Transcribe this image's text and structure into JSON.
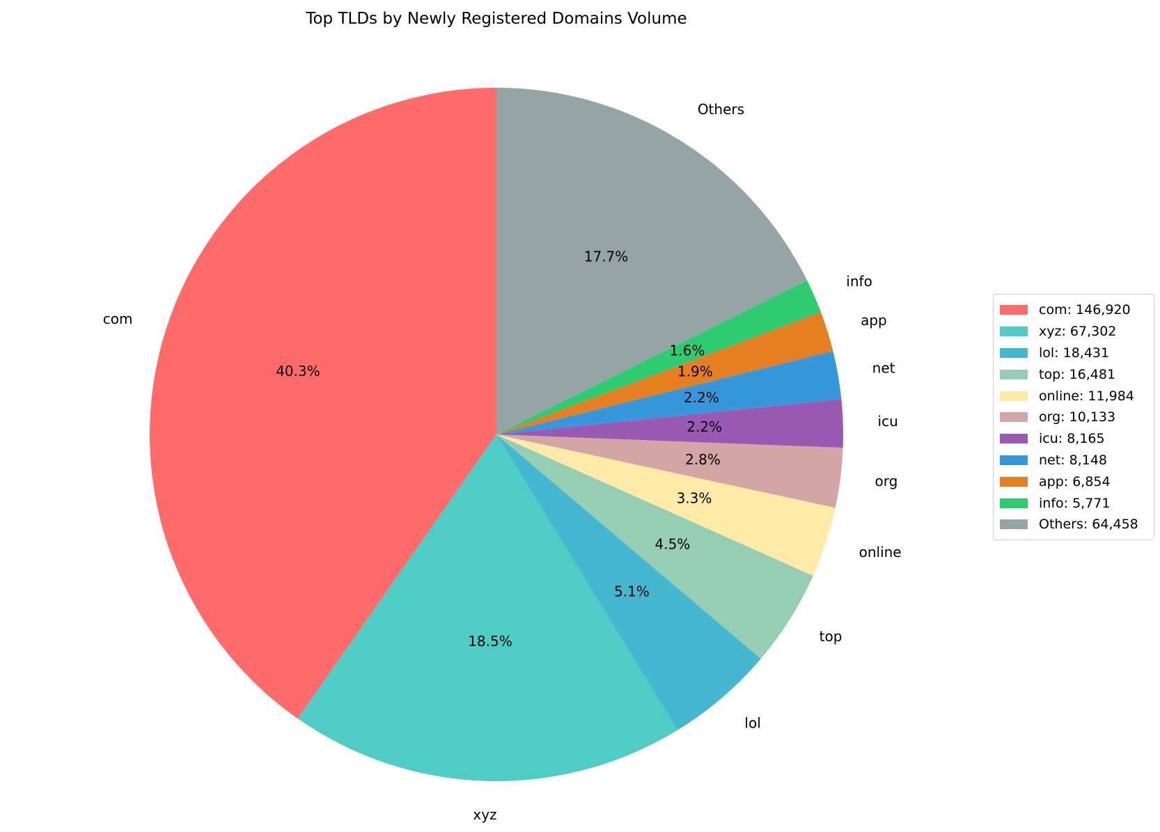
{
  "chart_data": {
    "type": "pie",
    "title": "Top TLDs by Newly Registered Domains Volume",
    "start_angle_deg": 90,
    "direction": "counterclockwise",
    "slices": [
      {
        "label": "com",
        "value": 146920,
        "pct": "40.3%",
        "legend": "com: 146,920",
        "color": "#ff6b6b"
      },
      {
        "label": "xyz",
        "value": 67302,
        "pct": "18.5%",
        "legend": "xyz: 67,302",
        "color": "#4ecdc4"
      },
      {
        "label": "lol",
        "value": 18431,
        "pct": "5.1%",
        "legend": "lol: 18,431",
        "color": "#45b7d1"
      },
      {
        "label": "top",
        "value": 16481,
        "pct": "4.5%",
        "legend": "top: 16,481",
        "color": "#96ceb4"
      },
      {
        "label": "online",
        "value": 11984,
        "pct": "3.3%",
        "legend": "online: 11,984",
        "color": "#ffeaa7"
      },
      {
        "label": "org",
        "value": 10133,
        "pct": "2.8%",
        "legend": "org: 10,133",
        "color": "#d4a5a5"
      },
      {
        "label": "icu",
        "value": 8165,
        "pct": "2.2%",
        "legend": "icu: 8,165",
        "color": "#9b59b6"
      },
      {
        "label": "net",
        "value": 8148,
        "pct": "2.2%",
        "legend": "net: 8,148",
        "color": "#3498db"
      },
      {
        "label": "app",
        "value": 6854,
        "pct": "1.9%",
        "legend": "app: 6,854",
        "color": "#e67e22"
      },
      {
        "label": "info",
        "value": 5771,
        "pct": "1.6%",
        "legend": "info: 5,771",
        "color": "#2ecc71"
      },
      {
        "label": "Others",
        "value": 64458,
        "pct": "17.7%",
        "legend": "Others: 64,458",
        "color": "#95a5a6"
      }
    ],
    "legend_position": "right"
  }
}
